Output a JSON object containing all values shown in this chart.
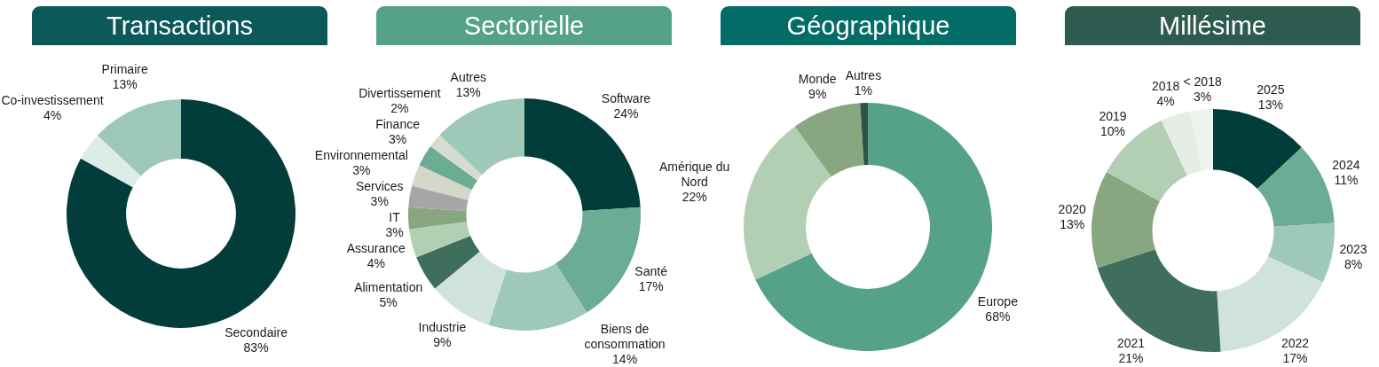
{
  "chart_data": [
    {
      "type": "donut",
      "title": "Transactions",
      "categories": [
        "Secondaire",
        "Co-investissement",
        "Primaire"
      ],
      "values": [
        83,
        4,
        13
      ],
      "value_labels": [
        "83%",
        "4%",
        "13%"
      ],
      "colors": [
        "#023d3c",
        "#dcece6",
        "#9dc8b8"
      ]
    },
    {
      "type": "donut",
      "title": "Sectorielle",
      "categories": [
        "Software",
        "Santé",
        "Biens de consommation",
        "Industrie",
        "Alimentation",
        "Assurance",
        "IT",
        "Services",
        "Environnemental",
        "Finance",
        "Divertissement",
        "Autres"
      ],
      "values": [
        24,
        17,
        14,
        9,
        5,
        4,
        3,
        3,
        3,
        3,
        2,
        13
      ],
      "value_labels": [
        "24%",
        "17%",
        "14%",
        "9%",
        "5%",
        "4%",
        "3%",
        "3%",
        "3%",
        "3%",
        "2%",
        "13%"
      ],
      "colors": [
        "#023d3c",
        "#6aac94",
        "#9ec8b8",
        "#cfe3dc",
        "#3f6f5c",
        "#b3cfb3",
        "#88a67f",
        "#a6a6a6",
        "#d4d7ca",
        "#6aac94",
        "#d5dcd0",
        "#9ec8b8"
      ]
    },
    {
      "type": "donut",
      "title": "Géographique",
      "categories": [
        "Europe",
        "Amérique du Nord",
        "Monde",
        "Autres"
      ],
      "values": [
        68,
        22,
        9,
        1
      ],
      "value_labels": [
        "68%",
        "22%",
        "9%",
        "1%"
      ],
      "colors": [
        "#55a288",
        "#b3cfb3",
        "#88a67f",
        "#2e5446"
      ]
    },
    {
      "type": "donut",
      "title": "Millésime",
      "categories": [
        "2025",
        "2024",
        "2023",
        "2022",
        "2021",
        "2020",
        "2019",
        "2018",
        "< 2018"
      ],
      "values": [
        13,
        11,
        8,
        17,
        21,
        13,
        10,
        4,
        3
      ],
      "value_labels": [
        "13%",
        "11%",
        "8%",
        "17%",
        "21%",
        "13%",
        "10%",
        "4%",
        "3%"
      ],
      "colors": [
        "#023d3c",
        "#6aac94",
        "#9ec8b8",
        "#cfe3dc",
        "#3f6f5c",
        "#88a67f",
        "#b3cfb3",
        "#e5ebe5",
        "#eef3ee"
      ]
    }
  ]
}
